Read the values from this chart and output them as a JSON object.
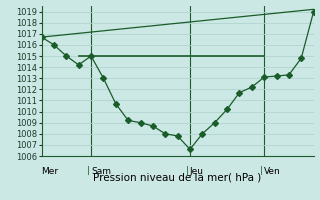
{
  "bg_color": "#cce8e4",
  "grid_color": "#b0d4d0",
  "line_color": "#1a5c2a",
  "xlabel": "Pression niveau de la mer( hPa )",
  "ylim": [
    1006,
    1019.5
  ],
  "yticks": [
    1006,
    1007,
    1008,
    1009,
    1010,
    1011,
    1012,
    1013,
    1014,
    1015,
    1016,
    1017,
    1018,
    1019
  ],
  "day_labels": [
    "Mer",
    "Sam",
    "Jeu",
    "Ven"
  ],
  "vline_x": [
    0.18,
    0.56,
    0.82
  ],
  "series1_x": [
    0,
    1,
    2,
    3,
    4,
    5,
    6,
    7,
    8,
    9,
    10,
    11,
    12,
    13,
    14,
    15,
    16,
    17,
    18,
    19,
    20,
    21,
    22
  ],
  "series1_y": [
    1016.7,
    1016.0,
    1015.0,
    1014.2,
    1015.0,
    1013.0,
    1010.7,
    1009.2,
    1009.0,
    1008.7,
    1008.0,
    1007.8,
    1006.6,
    1008.0,
    1009.0,
    1010.2,
    1011.7,
    1012.2,
    1013.1,
    1013.2,
    1013.3,
    1014.8,
    1019.0
  ],
  "series2_x": [
    0,
    22
  ],
  "series2_y": [
    1016.7,
    1019.2
  ],
  "series3_x": [
    3,
    18
  ],
  "series3_y": [
    1015.0,
    1015.0
  ],
  "series4_x": [
    3,
    8,
    18
  ],
  "series4_y": [
    1015.0,
    1015.0,
    1015.0
  ],
  "xlim": [
    0,
    22
  ]
}
